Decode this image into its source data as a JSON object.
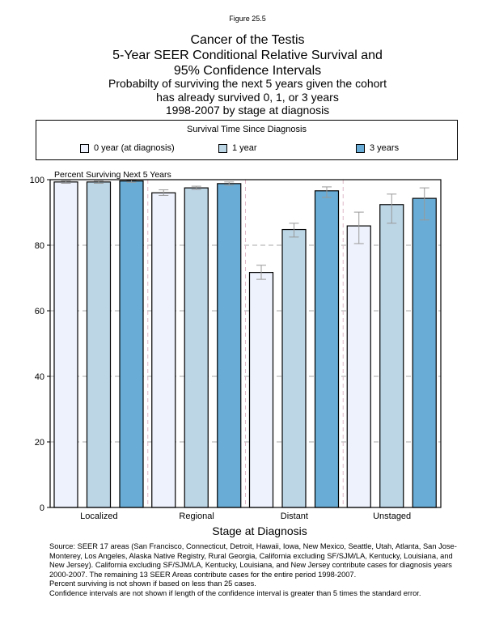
{
  "figure_label": "Figure 25.5",
  "title_lines": [
    "Cancer of the Testis",
    "5-Year SEER Conditional Relative Survival and",
    "95% Confidence Intervals"
  ],
  "subtitle_lines": [
    "Probabilty of surviving the next 5 years given the cohort",
    "has already survived 0, 1, or 3 years",
    "1998-2007 by stage at diagnosis"
  ],
  "legend": {
    "title": "Survival Time Since Diagnosis",
    "placement": "top",
    "items": [
      {
        "label": "0 year (at diagnosis)",
        "color": "#eef2fc"
      },
      {
        "label": "1 year",
        "color": "#bcd6e6"
      },
      {
        "label": "3 years",
        "color": "#69add6"
      }
    ]
  },
  "chart_data": {
    "type": "bar",
    "ylabel": "Percent Surviving Next 5 Years",
    "xlabel": "Stage at Diagnosis",
    "categories": [
      "Localized",
      "Regional",
      "Distant",
      "Unstaged"
    ],
    "ylim": [
      0,
      100
    ],
    "yticks": [
      0,
      20,
      40,
      60,
      80,
      100
    ],
    "grid": true,
    "series": [
      {
        "name": "0 year (at diagnosis)",
        "values": [
          99.3,
          96.0,
          71.7,
          85.9
        ],
        "ci_low": [
          98.9,
          95.2,
          69.6,
          80.5
        ],
        "ci_high": [
          99.6,
          96.9,
          73.9,
          90.1
        ]
      },
      {
        "name": "1 year",
        "values": [
          99.3,
          97.5,
          84.8,
          92.4
        ],
        "ci_low": [
          98.9,
          97.0,
          82.5,
          86.7
        ],
        "ci_high": [
          99.6,
          98.0,
          86.7,
          95.6
        ]
      },
      {
        "name": "3 years",
        "values": [
          99.6,
          98.8,
          96.6,
          94.3
        ],
        "ci_low": [
          99.2,
          98.3,
          94.6,
          87.7
        ],
        "ci_high": [
          99.9,
          99.3,
          97.8,
          97.5
        ]
      }
    ]
  },
  "footnotes": [
    "Source:  SEER 17 areas (San Francisco, Connecticut, Detroit, Hawaii, Iowa, New Mexico, Seattle, Utah, Atlanta, San Jose-Monterey, Los Angeles, Alaska Native Registry, Rural Georgia, California excluding SF/SJM/LA, Kentucky, Louisiana, and New Jersey). California excluding SF/SJM/LA, Kentucky, Louisiana, and New Jersey contribute cases for diagnosis years 2000-2007. The remaining 13 SEER Areas contribute cases for the entire period 1998-2007.",
    "Percent surviving is not shown if based on less than 25 cases.",
    "Confidence intervals are not shown if length of the confidence interval is greater than 5 times the standard error."
  ]
}
